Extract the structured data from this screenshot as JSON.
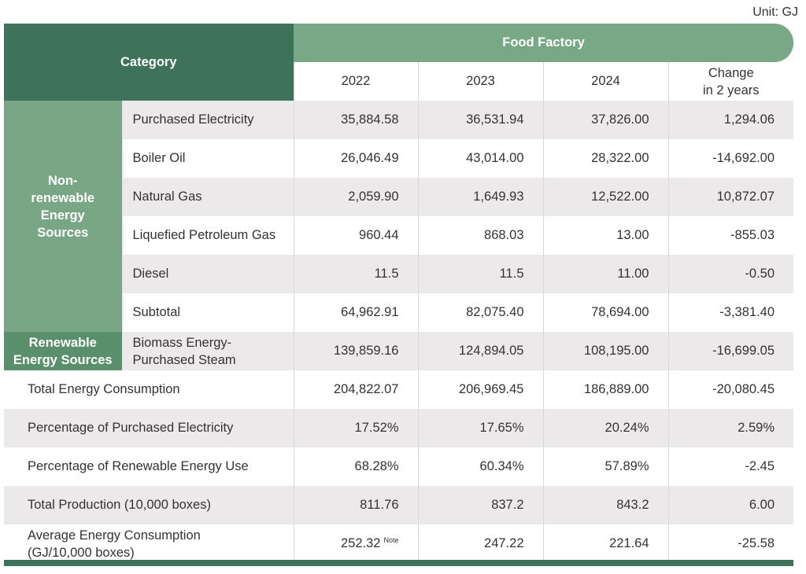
{
  "unit": "Unit: GJ",
  "header": {
    "category": "Category",
    "factory": "Food Factory",
    "years": [
      "2022",
      "2023",
      "2024"
    ],
    "change_line1": "Change",
    "change_line2": "in 2 years"
  },
  "groups": {
    "nonrenewable": [
      "Non-",
      "renewable",
      "Energy",
      "Sources"
    ],
    "renewable": [
      "Renewable",
      "Energy Sources"
    ]
  },
  "rows": [
    {
      "label": "Purchased Electricity",
      "v": [
        "35,884.58",
        "36,531.94",
        "37,826.00",
        "1,294.06"
      ]
    },
    {
      "label": "Boiler Oil",
      "v": [
        "26,046.49",
        "43,014.00",
        "28,322.00",
        "-14,692.00"
      ]
    },
    {
      "label": "Natural Gas",
      "v": [
        "2,059.90",
        "1,649.93",
        "12,522.00",
        "10,872.07"
      ]
    },
    {
      "label": "Liquefied Petroleum Gas",
      "v": [
        "960.44",
        "868.03",
        "13.00",
        "-855.03"
      ]
    },
    {
      "label": "Diesel",
      "v": [
        "11.5",
        "11.5",
        "11.00",
        "-0.50"
      ]
    },
    {
      "label": "Subtotal",
      "v": [
        "64,962.91",
        "82,075.40",
        "78,694.00",
        "-3,381.40"
      ]
    },
    {
      "label_line1": "Biomass Energy-",
      "label_line2": "Purchased Steam",
      "v": [
        "139,859.16",
        "124,894.05",
        "108,195.00",
        "-16,699.05"
      ]
    },
    {
      "label": "Total Energy Consumption",
      "v": [
        "204,822.07",
        "206,969.45",
        "186,889.00",
        "-20,080.45"
      ]
    },
    {
      "label": "Percentage of Purchased Electricity",
      "v": [
        "17.52%",
        "17.65%",
        "20.24%",
        "2.59%"
      ]
    },
    {
      "label": "Percentage of Renewable Energy Use",
      "v": [
        "68.28%",
        "60.34%",
        "57.89%",
        "-2.45"
      ]
    },
    {
      "label": "Total Production (10,000 boxes)",
      "v": [
        "811.76",
        "837.2",
        "843.2",
        "6.00"
      ]
    },
    {
      "label_line1": "Average Energy Consumption",
      "label_line2": "(GJ/10,000 boxes)",
      "v": [
        "252.32",
        "247.22",
        "221.64",
        "-25.58"
      ],
      "note": "Note"
    }
  ]
}
